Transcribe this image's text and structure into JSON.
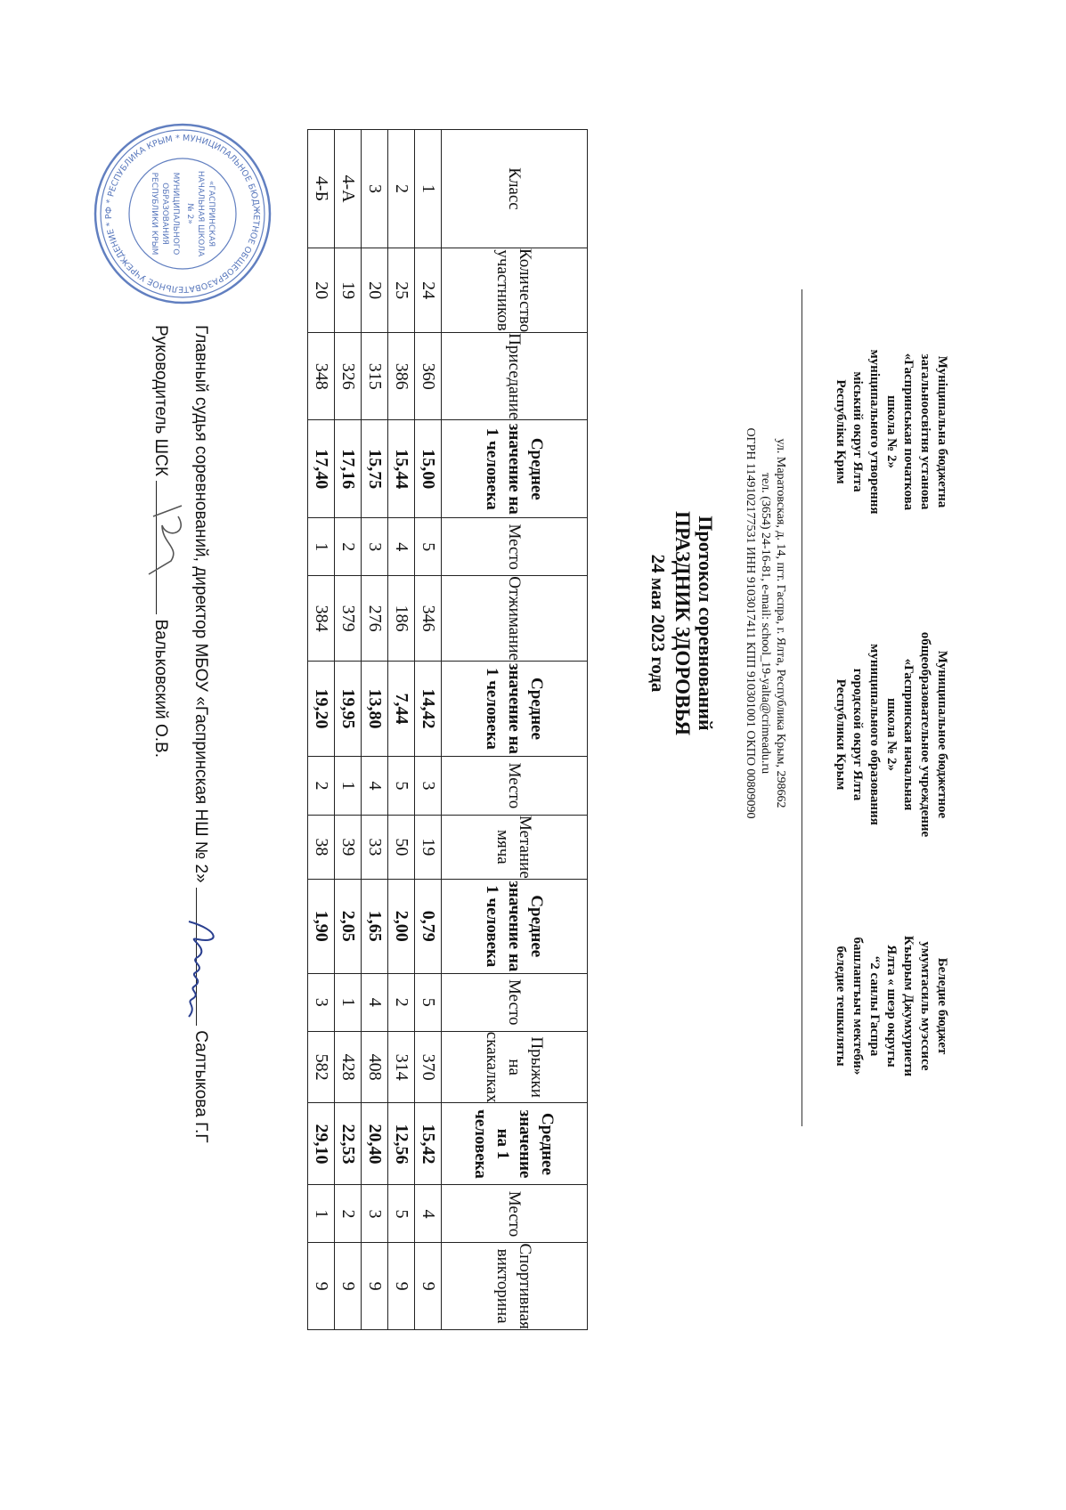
{
  "header": {
    "left": [
      "Муніципальна бюджетна",
      "загальноосвітня установа",
      "«Гаспринськая початкова",
      "школа № 2»",
      "муніципального утворення",
      "міський округ Ялта",
      "Республіки Крим"
    ],
    "center": [
      "Муниципальное бюджетное",
      "общеобразовательное учреждение",
      "«Гаспринская начальная",
      "школа № 2»",
      "муниципального образования",
      "городской округ Ялта",
      "Республики Крым"
    ],
    "right": [
      "Беледие бюджет",
      "умумтасиль муэссисе",
      "Къырым Джумхуриети",
      "Ялта « шеэр округы",
      "“2 санлы Гаспра",
      "башлангъыч мектеби»",
      "беледие тешкиляты"
    ],
    "address": [
      "ул. Маратовская, д. 14, пгт. Гаспра, г. Ялта, Республика Крым, 298662",
      "тел. (3654) 24-16-81, e-mail: school_19-yalta@crimeadu.ru",
      "ОГРН 1149102177531 ИНН 9103017411 КПП 910301001 ОКПО 00809090"
    ]
  },
  "title": {
    "line1": "Протокол соревнований",
    "line2": "ПРАЗДНИК  ЗДОРОВЬЯ",
    "line3": "24 мая 2023 года"
  },
  "table": {
    "headers": [
      "Класс",
      "Количество участников",
      "Приседание",
      "Среднее значение на 1 человека",
      "Место",
      "Отжимание",
      "Среднее значение на 1 человека",
      "Место",
      "Метание мяча",
      "Среднее значение на 1 человека",
      "Место",
      "Прыжки на скакалках",
      "Среднее значение на 1 человека",
      "Место",
      "Спортивная викторина"
    ],
    "rows": [
      [
        "1",
        "24",
        "360",
        "15,00",
        "5",
        "346",
        "14,42",
        "3",
        "19",
        "0,79",
        "5",
        "370",
        "15,42",
        "4",
        "9"
      ],
      [
        "2",
        "25",
        "386",
        "15,44",
        "4",
        "186",
        "7,44",
        "5",
        "50",
        "2,00",
        "2",
        "314",
        "12,56",
        "5",
        "9"
      ],
      [
        "3",
        "20",
        "315",
        "15,75",
        "3",
        "276",
        "13,80",
        "4",
        "33",
        "1,65",
        "4",
        "408",
        "20,40",
        "3",
        "9"
      ],
      [
        "4-А",
        "19",
        "326",
        "17,16",
        "2",
        "379",
        "19,95",
        "1",
        "39",
        "2,05",
        "1",
        "428",
        "22,53",
        "2",
        "9"
      ],
      [
        "4-Б",
        "20",
        "348",
        "17,40",
        "1",
        "384",
        "19,20",
        "2",
        "38",
        "1,90",
        "3",
        "582",
        "29,10",
        "1",
        "9"
      ]
    ]
  },
  "signatures": {
    "judge_label": "Главный судья соревнований,  директор МБОУ «Гаспринская НШ № 2»",
    "judge_name": "Салтыкова Г.Г",
    "head_label": "Руководитель ШСК",
    "head_name": "Вальковский О.В."
  },
  "stamp": {
    "text": "МУНИЦИПАЛЬНОЕ БЮДЖЕТНОЕ ОБЩЕОБРАЗОВАТЕЛЬНОЕ УЧРЕЖДЕНИЕ «ГАСПРИНСКАЯ НАЧАЛЬНАЯ ШКОЛА № 2» РЕСПУБЛИКА КРЫМ ЯЛТА ОГРН 1149102177531 ИНН 9103017411"
  },
  "colors": {
    "stamp": "#3a5fb0",
    "ink": "#2a3f8f"
  }
}
